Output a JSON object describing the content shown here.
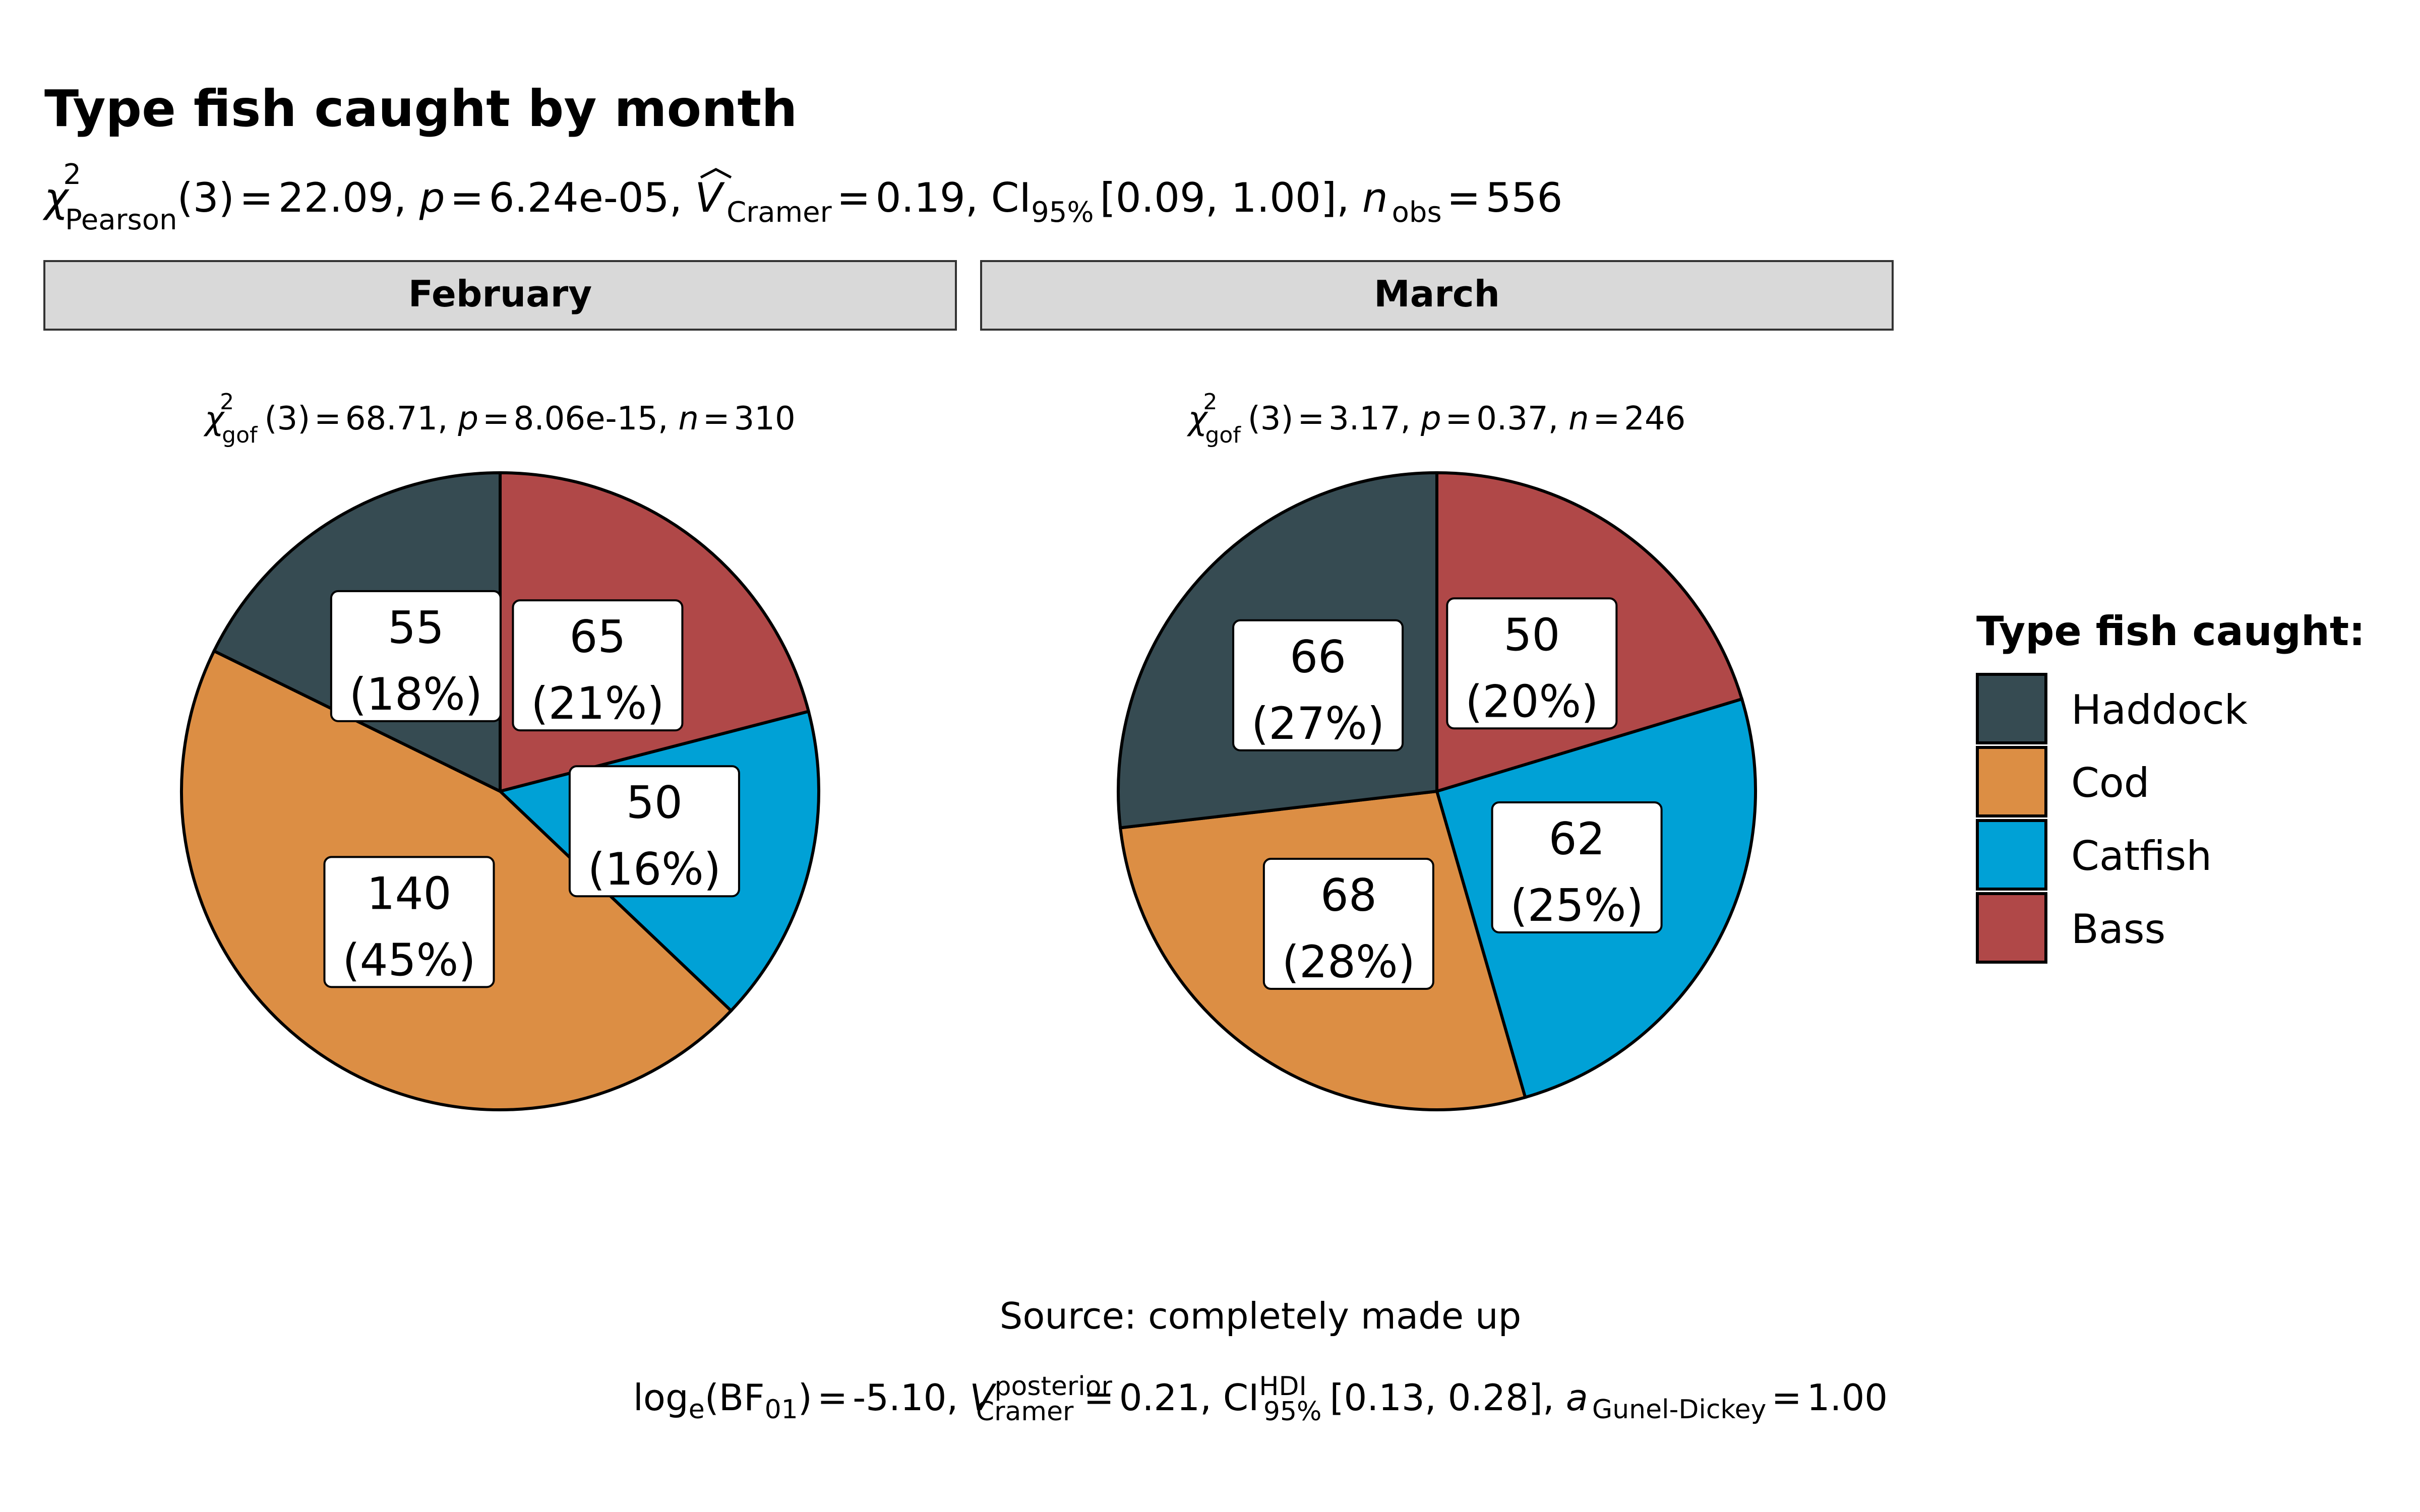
{
  "chart_data": {
    "type": "pie",
    "title": "Type fish caught by month",
    "subtitle": {
      "chi_label": "χ",
      "sup": "2",
      "sub": "Pearson",
      "df": "(3)",
      "stat": "22.09",
      "p_label": "p",
      "p_value": "6.24e-05",
      "v_label": "V",
      "v_sub": "Cramer",
      "v_value": "0.19",
      "ci_label": "CI",
      "ci_sub": "95%",
      "ci_value": "[0.09, 1.00]",
      "n_label": "n",
      "n_sub": "obs",
      "n_value": "556"
    },
    "legend": {
      "title": "Type fish caught:",
      "placement": "right",
      "items": [
        {
          "label": "Haddock",
          "color": "#364B52"
        },
        {
          "label": "Cod",
          "color": "#DC8E44"
        },
        {
          "label": "Catfish",
          "color": "#00A1D6"
        },
        {
          "label": "Bass",
          "color": "#B04848"
        }
      ]
    },
    "panels": [
      {
        "strip": "February",
        "stats": {
          "chi": "χ",
          "sup": "2",
          "sub": "gof",
          "df": "(3)",
          "stat": "68.71,",
          "p_label": "p",
          "p_value": "8.06e-15,",
          "n_label": "n",
          "n_value": "310"
        },
        "slices": [
          {
            "category": "Bass",
            "value": 65,
            "count_label": "65",
            "pct_label": "(21%)"
          },
          {
            "category": "Catfish",
            "value": 50,
            "count_label": "50",
            "pct_label": "(16%)"
          },
          {
            "category": "Cod",
            "value": 140,
            "count_label": "140",
            "pct_label": "(45%)"
          },
          {
            "category": "Haddock",
            "value": 55,
            "count_label": "55",
            "pct_label": "(18%)"
          }
        ]
      },
      {
        "strip": "March",
        "stats": {
          "chi": "χ",
          "sup": "2",
          "sub": "gof",
          "df": "(3)",
          "stat": "3.17,",
          "p_label": "p",
          "p_value": "0.37,",
          "n_label": "n",
          "n_value": "246"
        },
        "slices": [
          {
            "category": "Bass",
            "value": 50,
            "count_label": "50",
            "pct_label": "(20%)"
          },
          {
            "category": "Catfish",
            "value": 62,
            "count_label": "62",
            "pct_label": "(25%)"
          },
          {
            "category": "Cod",
            "value": 68,
            "count_label": "68",
            "pct_label": "(28%)"
          },
          {
            "category": "Haddock",
            "value": 66,
            "count_label": "66",
            "pct_label": "(27%)"
          }
        ]
      }
    ],
    "caption": "Source: completely made up",
    "bayes": {
      "log": "log",
      "log_sub": "e",
      "bf": "BF",
      "bf_sub": "01",
      "value": "-5.10",
      "v_label": "V",
      "v_sup": "posterior",
      "v_sub": "Cramer",
      "v_value": "0.21",
      "ci_label": "CI",
      "ci_sup": "HDI",
      "ci_sub": "95%",
      "ci_value": "[0.13, 0.28]",
      "a_label": "a",
      "a_sub": "Gunel-Dickey",
      "a_value": "1.00"
    }
  }
}
